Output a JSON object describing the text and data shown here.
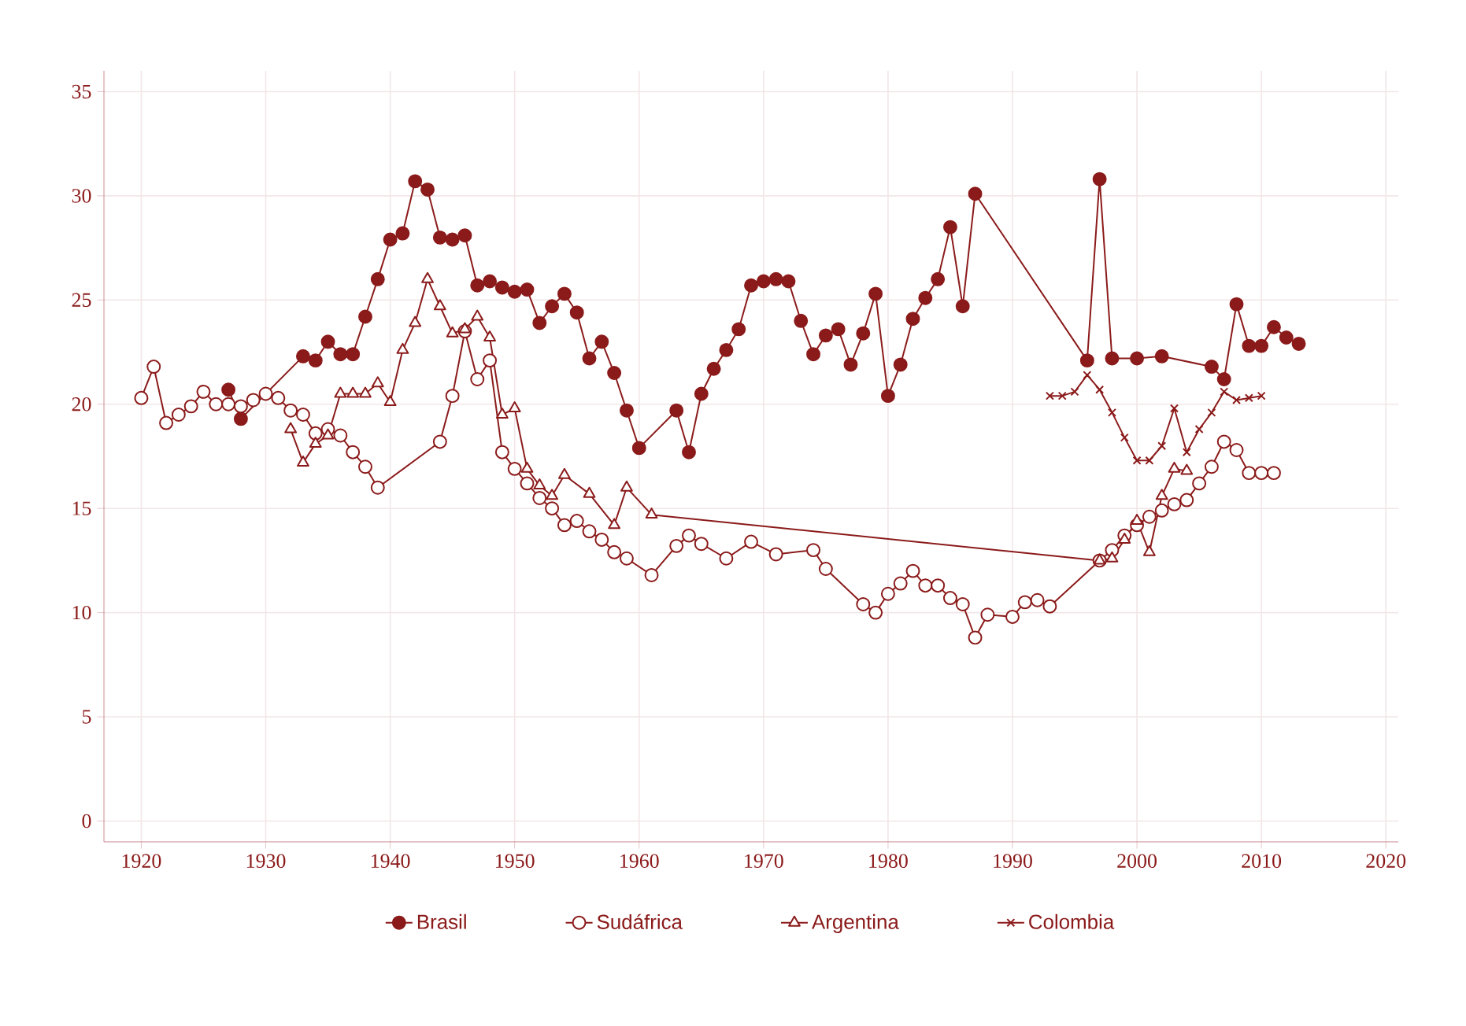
{
  "chart_data": {
    "type": "line",
    "line_style": "solid",
    "grid": true,
    "legend": "bottom",
    "xlim": [
      1917,
      2021
    ],
    "ylim": [
      -1,
      36
    ],
    "xticks": [
      1920,
      1930,
      1940,
      1950,
      1960,
      1970,
      1980,
      1990,
      2000,
      2010,
      2020
    ],
    "yticks": [
      0,
      5,
      10,
      15,
      20,
      25,
      30,
      35
    ],
    "series": [
      {
        "name": "Brasil",
        "color": "#8b1a1a",
        "marker": "circle",
        "x": [
          1927,
          1928,
          1933,
          1934,
          1935,
          1936,
          1937,
          1938,
          1939,
          1940,
          1941,
          1942,
          1943,
          1944,
          1945,
          1946,
          1947,
          1948,
          1949,
          1950,
          1951,
          1952,
          1953,
          1954,
          1955,
          1956,
          1957,
          1958,
          1959,
          1960,
          1963,
          1964,
          1965,
          1966,
          1967,
          1968,
          1969,
          1970,
          1971,
          1972,
          1973,
          1974,
          1975,
          1976,
          1977,
          1978,
          1979,
          1980,
          1981,
          1982,
          1983,
          1984,
          1985,
          1986,
          1987,
          1996,
          1997,
          1998,
          2000,
          2002,
          2006,
          2007,
          2008,
          2009,
          2010,
          2011,
          2012,
          2013
        ],
        "values": [
          20.7,
          19.3,
          22.3,
          22.1,
          23.0,
          22.4,
          22.4,
          24.2,
          26.0,
          27.9,
          28.2,
          30.7,
          30.3,
          28.0,
          27.9,
          28.1,
          25.7,
          25.9,
          25.6,
          25.4,
          25.5,
          23.9,
          24.7,
          25.3,
          24.4,
          22.2,
          23.0,
          21.5,
          19.7,
          17.9,
          19.7,
          17.7,
          20.5,
          21.7,
          22.6,
          23.6,
          25.7,
          25.9,
          26.0,
          25.9,
          24.0,
          22.4,
          23.3,
          23.6,
          21.9,
          23.4,
          25.3,
          20.4,
          21.9,
          24.1,
          25.1,
          26.0,
          28.5,
          24.7,
          30.1,
          22.1,
          30.8,
          22.2,
          22.2,
          22.3,
          21.8,
          21.2,
          24.8,
          22.8,
          22.8,
          23.7,
          23.2,
          22.9
        ]
      },
      {
        "name": "Sudáfrica",
        "color": "#8b1a1a",
        "marker": "circle",
        "x": [
          1920,
          1921,
          1922,
          1923,
          1924,
          1925,
          1926,
          1927,
          1928,
          1929,
          1930,
          1931,
          1932,
          1933,
          1934,
          1935,
          1936,
          1937,
          1938,
          1939,
          1944,
          1945,
          1946,
          1947,
          1948,
          1949,
          1950,
          1951,
          1952,
          1953,
          1954,
          1955,
          1956,
          1957,
          1958,
          1959,
          1961,
          1963,
          1964,
          1965,
          1967,
          1969,
          1971,
          1974,
          1975,
          1978,
          1979,
          1980,
          1981,
          1982,
          1983,
          1984,
          1985,
          1986,
          1987,
          1988,
          1990,
          1991,
          1992,
          1993,
          1997,
          1998,
          1999,
          2000,
          2001,
          2002,
          2003,
          2004,
          2005,
          2006,
          2007,
          2008,
          2009,
          2010,
          2011
        ],
        "values": [
          20.3,
          21.8,
          19.1,
          19.5,
          19.9,
          20.6,
          20.0,
          20.0,
          19.9,
          20.2,
          20.5,
          20.3,
          19.7,
          19.5,
          18.6,
          18.8,
          18.5,
          17.7,
          17.0,
          16.0,
          18.2,
          20.4,
          23.5,
          21.2,
          22.1,
          17.7,
          16.9,
          16.2,
          15.5,
          15.0,
          14.2,
          14.4,
          13.9,
          13.5,
          12.9,
          12.6,
          11.8,
          13.2,
          13.7,
          13.3,
          12.6,
          13.4,
          12.8,
          13.0,
          12.1,
          10.4,
          10.0,
          10.9,
          11.4,
          12.0,
          11.3,
          11.3,
          10.7,
          10.4,
          8.8,
          9.9,
          9.8,
          10.5,
          10.6,
          10.3,
          12.5,
          13.0,
          13.7,
          14.2,
          14.6,
          14.9,
          15.2,
          15.4,
          16.2,
          17.0,
          18.2,
          17.8,
          16.7,
          16.7,
          16.7
        ]
      },
      {
        "name": "Argentina",
        "color": "#8b1a1a",
        "marker": "triangle",
        "x": [
          1932,
          1933,
          1934,
          1935,
          1936,
          1937,
          1938,
          1939,
          1940,
          1941,
          1942,
          1943,
          1944,
          1945,
          1946,
          1947,
          1948,
          1949,
          1950,
          1951,
          1952,
          1953,
          1954,
          1956,
          1958,
          1959,
          1961,
          1997,
          1998,
          1999,
          2000,
          2001,
          2002,
          2003,
          2004
        ],
        "values": [
          18.8,
          17.2,
          18.1,
          18.5,
          20.5,
          20.5,
          20.5,
          21.0,
          20.1,
          22.6,
          23.9,
          26.0,
          24.7,
          23.4,
          23.6,
          24.2,
          23.2,
          19.5,
          19.8,
          16.9,
          16.1,
          15.6,
          16.6,
          15.7,
          14.2,
          16.0,
          14.7,
          12.5,
          12.6,
          13.5,
          14.4,
          12.9,
          15.6,
          16.9,
          16.8
        ]
      },
      {
        "name": "Colombia",
        "color": "#8b1a1a",
        "marker": "cross",
        "x": [
          1993,
          1994,
          1995,
          1996,
          1997,
          1998,
          1999,
          2000,
          2001,
          2002,
          2003,
          2004,
          2005,
          2006,
          2007,
          2008,
          2009,
          2010
        ],
        "values": [
          20.4,
          20.4,
          20.6,
          21.4,
          20.7,
          19.6,
          18.4,
          17.3,
          17.3,
          18.0,
          19.8,
          17.7,
          18.8,
          19.6,
          20.6,
          20.2,
          20.3,
          20.4
        ]
      }
    ]
  }
}
